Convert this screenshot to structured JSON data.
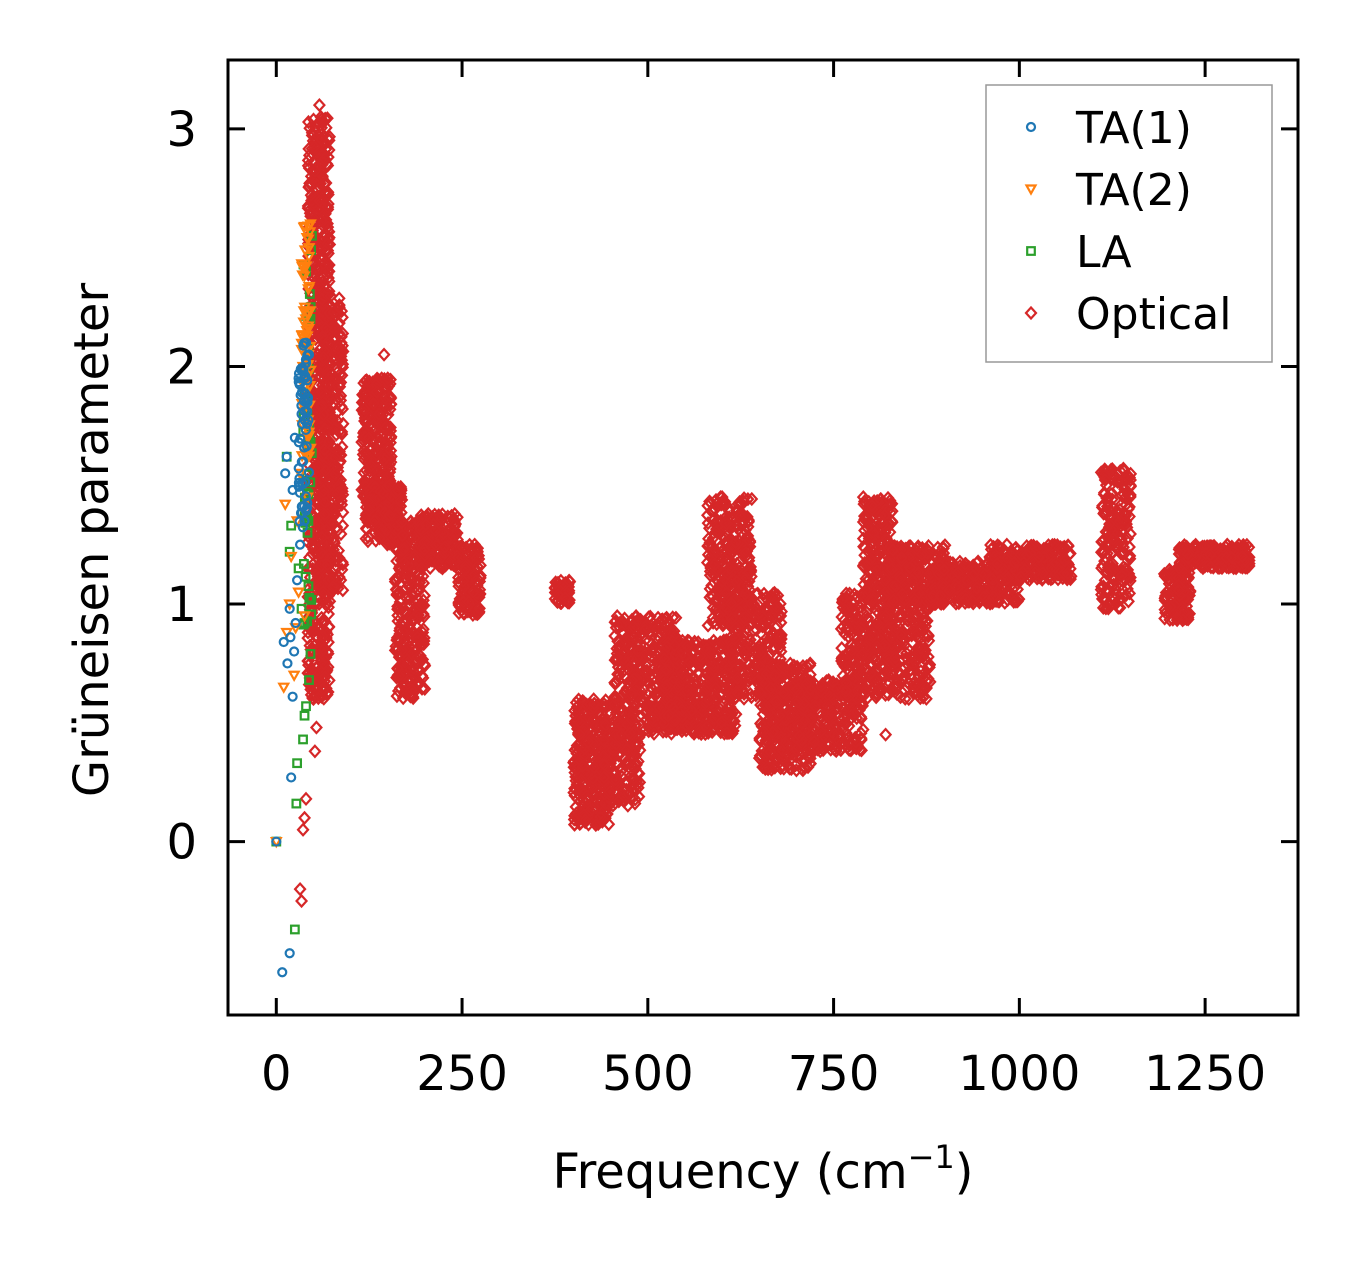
{
  "chart_data": {
    "type": "scatter",
    "title": "",
    "xlabel": "Frequency (cm",
    "xlabel_sup": "−1",
    "xlabel_close": ")",
    "ylabel": "Grüneisen parameter",
    "xlim": [
      -65,
      1375
    ],
    "ylim": [
      -0.73,
      3.29
    ],
    "xticks": [
      0,
      250,
      500,
      750,
      1000,
      1250
    ],
    "xtick_labels": [
      "0",
      "250",
      "500",
      "750",
      "1000",
      "1250"
    ],
    "yticks": [
      0,
      1,
      2,
      3
    ],
    "ytick_labels": [
      "0",
      "1",
      "2",
      "3"
    ],
    "grid": false,
    "legend_position": "top-right",
    "series": [
      {
        "name": "TA(1)",
        "marker": "circle",
        "color": "#1f77b4",
        "points": [
          [
            0,
            0
          ],
          [
            8,
            -0.55
          ],
          [
            18,
            -0.47
          ],
          [
            20,
            0.27
          ],
          [
            22,
            0.61
          ],
          [
            10,
            0.84
          ],
          [
            15,
            0.75
          ],
          [
            18,
            0.98
          ],
          [
            12,
            1.55
          ],
          [
            14,
            1.62
          ],
          [
            22,
            1.48
          ],
          [
            25,
            1.7
          ],
          [
            30,
            1.95
          ],
          [
            34,
            1.8
          ],
          [
            40,
            2.1
          ],
          [
            38,
            1.35
          ],
          [
            28,
            1.1
          ],
          [
            26,
            0.92
          ],
          [
            32,
            1.25
          ],
          [
            36,
            1.6
          ],
          [
            42,
            1.85
          ],
          [
            44,
            2.05
          ],
          [
            24,
            0.8
          ],
          [
            19,
            0.86
          ]
        ],
        "dense_regions": [
          [
            30,
            44,
            1.3,
            2.1,
            60
          ]
        ]
      },
      {
        "name": "TA(2)",
        "marker": "triangle-down",
        "color": "#ff7f0e",
        "points": [
          [
            0,
            0
          ],
          [
            10,
            0.65
          ],
          [
            14,
            0.88
          ],
          [
            18,
            1.0
          ],
          [
            12,
            1.42
          ],
          [
            20,
            1.2
          ],
          [
            24,
            0.7
          ],
          [
            28,
            1.35
          ],
          [
            32,
            1.55
          ],
          [
            36,
            2.0
          ],
          [
            40,
            2.2
          ],
          [
            44,
            2.5
          ],
          [
            46,
            2.6
          ],
          [
            42,
            1.45
          ],
          [
            38,
            0.95
          ],
          [
            30,
            1.05
          ],
          [
            26,
            0.9
          ]
        ],
        "dense_regions": [
          [
            34,
            46,
            1.6,
            2.6,
            60
          ]
        ]
      },
      {
        "name": "LA",
        "marker": "square",
        "color": "#2ca02c",
        "points": [
          [
            0,
            0
          ],
          [
            25,
            -0.37
          ],
          [
            27,
            0.16
          ],
          [
            28,
            0.33
          ],
          [
            36,
            0.43
          ],
          [
            38,
            0.53
          ],
          [
            40,
            0.57
          ],
          [
            44,
            0.68
          ],
          [
            46,
            0.79
          ],
          [
            18,
            1.22
          ],
          [
            20,
            1.33
          ],
          [
            14,
            1.62
          ],
          [
            30,
            1.15
          ],
          [
            34,
            0.98
          ],
          [
            38,
            0.92
          ],
          [
            42,
            1.3
          ],
          [
            44,
            1.75
          ],
          [
            46,
            2.2
          ],
          [
            48,
            2.55
          ],
          [
            40,
            2.4
          ]
        ],
        "dense_regions": [
          [
            36,
            48,
            0.9,
            2.55,
            40
          ]
        ]
      },
      {
        "name": "Optical",
        "marker": "diamond",
        "color": "#d62728",
        "points": [
          [
            32,
            -0.2
          ],
          [
            34,
            -0.25
          ],
          [
            36,
            0.05
          ],
          [
            38,
            0.1
          ],
          [
            40,
            0.18
          ],
          [
            52,
            0.38
          ],
          [
            54,
            0.48
          ],
          [
            50,
            0.6
          ],
          [
            48,
            0.72
          ],
          [
            58,
            3.1
          ],
          [
            60,
            3.05
          ],
          [
            145,
            2.05
          ],
          [
            150,
            1.95
          ],
          [
            600,
            1.45
          ],
          [
            610,
            1.4
          ],
          [
            790,
            1.45
          ],
          [
            870,
            0.7
          ],
          [
            1140,
            1.57
          ],
          [
            1300,
            1.2
          ],
          [
            430,
            0.07
          ],
          [
            470,
            0.25
          ],
          [
            700,
            0.3
          ],
          [
            780,
            0.42
          ],
          [
            820,
            0.45
          ]
        ],
        "dense_regions": [
          [
            42,
            72,
            0.6,
            3.05,
            700
          ],
          [
            60,
            90,
            1.05,
            2.3,
            300
          ],
          [
            115,
            155,
            1.45,
            1.95,
            250
          ],
          [
            120,
            170,
            1.25,
            1.5,
            200
          ],
          [
            160,
            200,
            0.6,
            1.35,
            300
          ],
          [
            190,
            245,
            1.15,
            1.38,
            200
          ],
          [
            245,
            275,
            0.95,
            1.25,
            120
          ],
          [
            375,
            395,
            1.0,
            1.1,
            60
          ],
          [
            400,
            450,
            0.07,
            0.6,
            300
          ],
          [
            440,
            490,
            0.15,
            0.5,
            150
          ],
          [
            455,
            540,
            0.45,
            0.95,
            400
          ],
          [
            520,
            620,
            0.45,
            0.85,
            450
          ],
          [
            580,
            640,
            0.9,
            1.45,
            300
          ],
          [
            610,
            680,
            0.6,
            1.05,
            250
          ],
          [
            650,
            720,
            0.3,
            0.75,
            350
          ],
          [
            700,
            790,
            0.38,
            0.68,
            300
          ],
          [
            760,
            880,
            0.6,
            1.05,
            450
          ],
          [
            790,
            830,
            1.0,
            1.45,
            200
          ],
          [
            820,
            900,
            1.0,
            1.25,
            250
          ],
          [
            880,
            1000,
            1.0,
            1.18,
            300
          ],
          [
            960,
            1070,
            1.1,
            1.25,
            250
          ],
          [
            1110,
            1150,
            0.98,
            1.57,
            200
          ],
          [
            1195,
            1230,
            0.93,
            1.15,
            120
          ],
          [
            1215,
            1310,
            1.15,
            1.25,
            200
          ]
        ]
      }
    ]
  }
}
